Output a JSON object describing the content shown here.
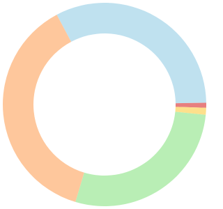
{
  "chart_data": {
    "type": "donut",
    "values": [
      32.5,
      0.8,
      1.1,
      28,
      37.6
    ],
    "colors": [
      "#bfe1ef",
      "#e77f7f",
      "#fde08c",
      "#b9eeb5",
      "#fec79c"
    ]
  }
}
